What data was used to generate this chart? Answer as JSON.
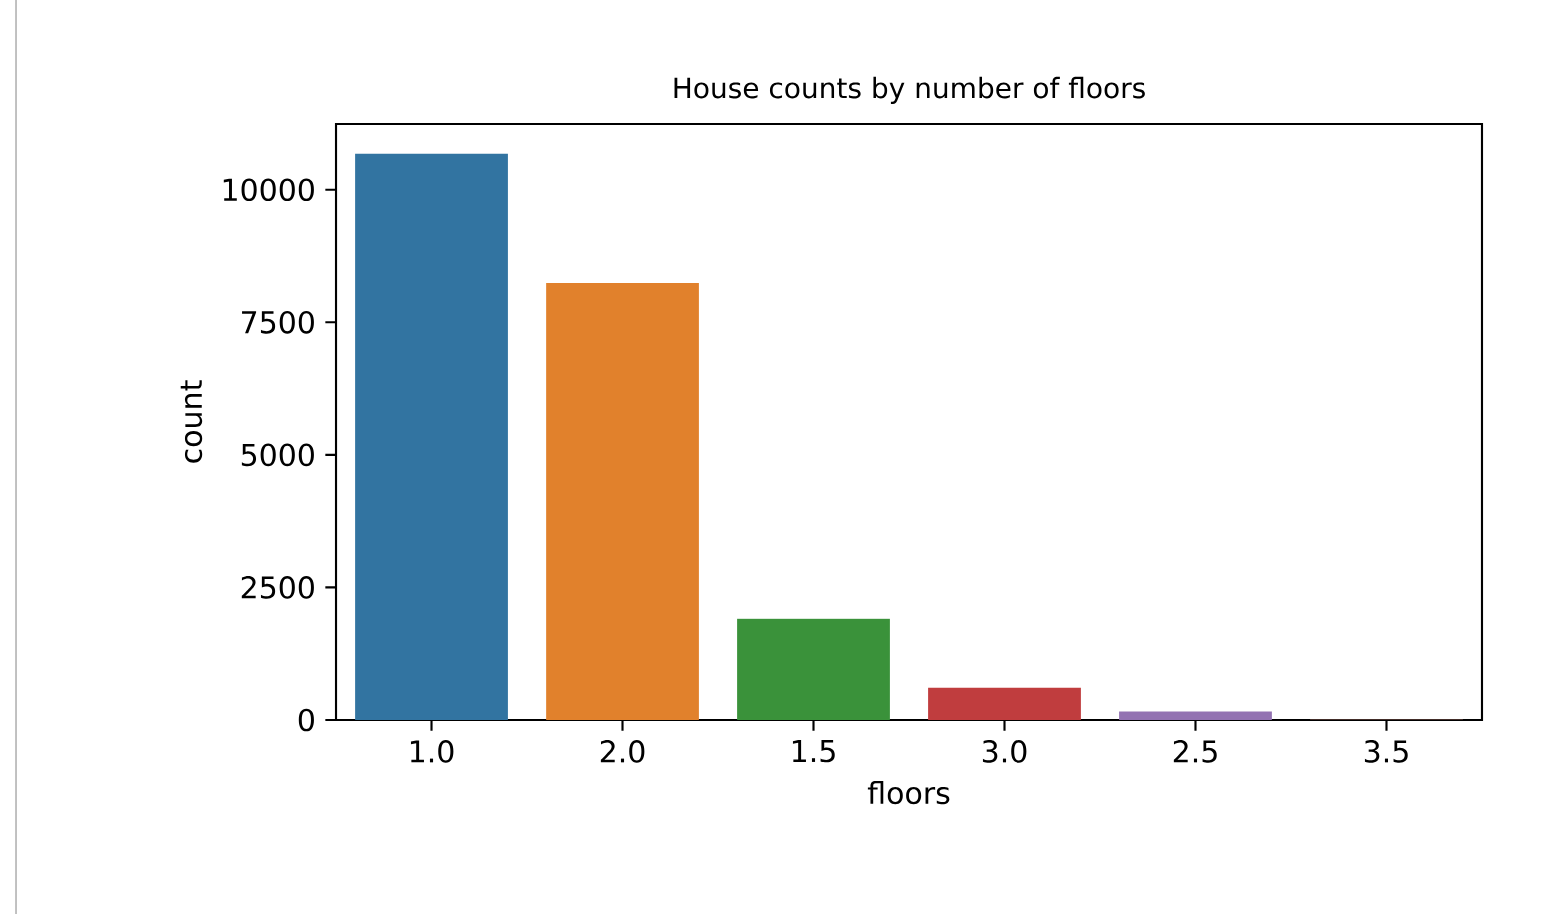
{
  "chart_data": {
    "type": "bar",
    "title": "House counts by number of floors",
    "xlabel": "floors",
    "ylabel": "count",
    "categories": [
      "1.0",
      "2.0",
      "1.5",
      "3.0",
      "2.5",
      "3.5"
    ],
    "values": [
      10680,
      8240,
      1910,
      610,
      160,
      10
    ],
    "colors": [
      "#3274a1",
      "#e1812c",
      "#3a923a",
      "#c03d3e",
      "#9372b2",
      "#845b53"
    ],
    "ylim": [
      0,
      11240
    ],
    "yticks": [
      0,
      2500,
      5000,
      7500,
      10000
    ],
    "grid": false
  }
}
